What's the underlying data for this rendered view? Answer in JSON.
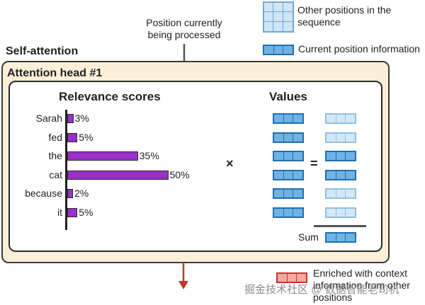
{
  "legend": {
    "other_positions": "Other positions in the sequence",
    "current_position": "Current position information",
    "enriched": "Enriched with context information from other positions"
  },
  "position_label": "Position currently being processed",
  "self_attention_title": "Self-attention",
  "attention_head_title": "Attention head #1",
  "relevance": {
    "title": "Relevance scores",
    "rows": [
      {
        "word": "Sarah",
        "percent_label": "3%",
        "value": 3
      },
      {
        "word": "fed",
        "percent_label": "5%",
        "value": 5
      },
      {
        "word": "the",
        "percent_label": "35%",
        "value": 35
      },
      {
        "word": "cat",
        "percent_label": "50%",
        "value": 50
      },
      {
        "word": "because",
        "percent_label": "2%",
        "value": 2
      },
      {
        "word": "it",
        "percent_label": "5%",
        "value": 5
      }
    ]
  },
  "values_title": "Values",
  "operators": {
    "multiply": "×",
    "equals": "="
  },
  "sum_label": "Sum",
  "result_weights": [
    "light",
    "light",
    "dark",
    "dark",
    "light",
    "light"
  ],
  "colors": {
    "bar": "#9b2fc9",
    "value_dark": "#1f6fb2",
    "value_light": "#8fc0e6",
    "enriched": "#c0392b",
    "arrow_down": "#c0392b",
    "panel_bg": "#fcefd8"
  },
  "watermark": "掘金技术社区 @ 数据智能老司机"
}
